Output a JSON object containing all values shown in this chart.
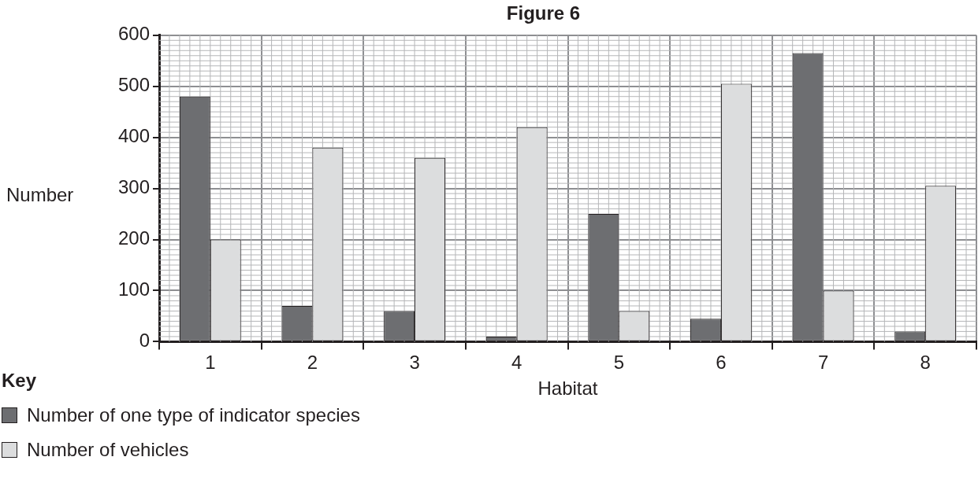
{
  "chart_data": {
    "type": "bar",
    "title": "Figure 6",
    "xlabel": "Habitat",
    "ylabel": "Number",
    "legend_title": "Key",
    "categories": [
      "1",
      "2",
      "3",
      "4",
      "5",
      "6",
      "7",
      "8"
    ],
    "series": [
      {
        "name": "Number of one type of indicator species",
        "color": "#6d6e71",
        "values": [
          480,
          70,
          60,
          10,
          250,
          45,
          565,
          20
        ]
      },
      {
        "name": "Number of vehicles",
        "color": "#dcddde",
        "values": [
          200,
          380,
          360,
          420,
          60,
          505,
          100,
          305
        ]
      }
    ],
    "ylim": [
      0,
      600
    ],
    "yticks": [
      0,
      100,
      200,
      300,
      400,
      500,
      600
    ],
    "grid": true,
    "legend": "bottom left"
  }
}
